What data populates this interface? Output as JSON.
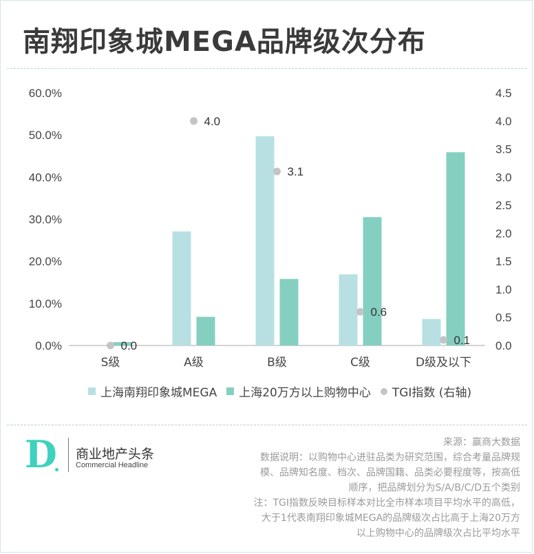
{
  "title": "南翔印象城MEGA品牌级次分布",
  "colors": {
    "series1": "#b8e0e3",
    "series2": "#85cfc0",
    "tgi": "#c4c4c4",
    "axis": "#aaaaaa",
    "brand": "#3fd1bd"
  },
  "chart_data": {
    "type": "bar",
    "categories": [
      "S级",
      "A级",
      "B级",
      "C级",
      "D级及以下"
    ],
    "series": [
      {
        "name": "上海南翔印象城MEGA",
        "values": [
          0.0,
          27.1,
          49.7,
          16.9,
          6.3
        ],
        "axis": "left",
        "kind": "bar"
      },
      {
        "name": "上海20万方以上购物中心",
        "values": [
          0.8,
          6.8,
          15.8,
          30.5,
          45.9
        ],
        "axis": "left",
        "kind": "bar"
      },
      {
        "name": "TGI指数 (右轴)",
        "values": [
          0.0,
          4.0,
          3.1,
          0.6,
          0.1
        ],
        "axis": "right",
        "kind": "scatter"
      }
    ],
    "tgi_labels": [
      "0.0",
      "4.0",
      "3.1",
      "0.6",
      "0.1"
    ],
    "y_left": {
      "min": 0,
      "max": 60,
      "ticks": [
        "0.0%",
        "10.0%",
        "20.0%",
        "30.0%",
        "40.0%",
        "50.0%",
        "60.0%"
      ]
    },
    "y_right": {
      "min": 0,
      "max": 4.5,
      "ticks": [
        "0.0",
        "0.5",
        "1.0",
        "1.5",
        "2.0",
        "2.5",
        "3.0",
        "3.5",
        "4.0",
        "4.5"
      ]
    },
    "grid": false,
    "legend": "bottom"
  },
  "legend": {
    "s1": "上海南翔印象城MEGA",
    "s2": "上海20万方以上购物中心",
    "s3": "TGI指数 (右轴)"
  },
  "brand": {
    "logo_letter": "D",
    "cn": "商业地产头条",
    "en": "Commercial Headline"
  },
  "notes": {
    "source": "来源：赢商大数据",
    "lines": [
      "数据说明：以购物中心进驻品类为研究范围，综合考量品牌规",
      "模、品牌知名度、档次、品牌国籍、品类必要程度等，按高低",
      "顺序，把品牌划分为S/A/B/C/D五个类别",
      "注：TGI指数反映目标样本对比全市样本项目平均水平的高低，",
      "大于1代表南翔印象城MEGA的品牌级次占比高于上海20万方",
      "以上购物中心的品牌级次占比平均水平"
    ]
  }
}
